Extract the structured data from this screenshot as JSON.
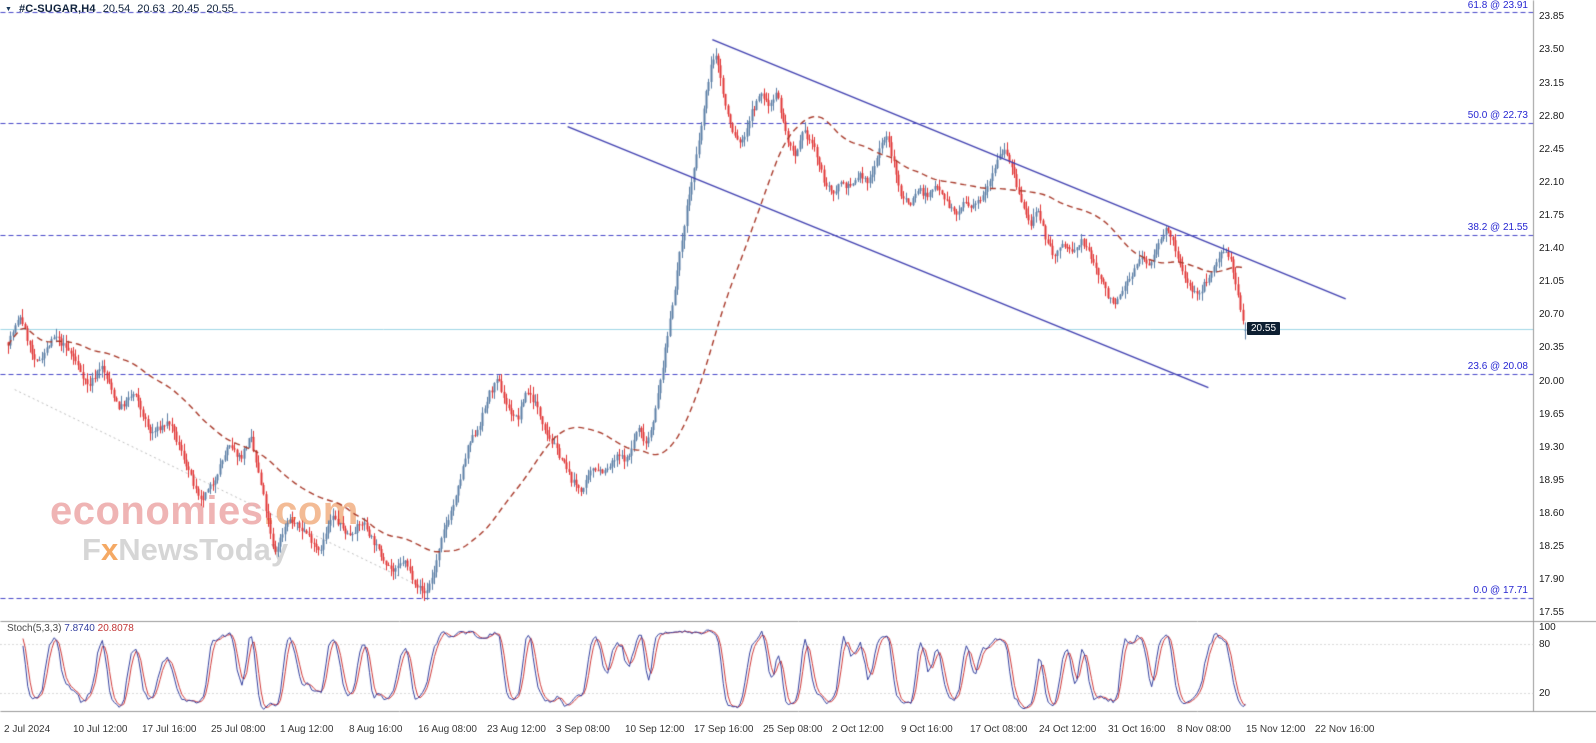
{
  "header": {
    "symbol": "#C-SUGAR,H4",
    "open": "20.54",
    "high": "20.63",
    "low": "20.45",
    "close": "20.55"
  },
  "watermark": {
    "brand": "economies",
    "brand_suffix": ".com",
    "sub_prefix": "F",
    "sub_x": "x",
    "sub_suffix": "NewsToday"
  },
  "colors": {
    "up": "#5c7fa6",
    "down": "#e03636",
    "ma": "#a93c2d",
    "channel": "#4040b0",
    "fib_line": "#4646c8",
    "price_line": "#9ed6e6",
    "price_tag_bg": "#0d1f31",
    "stoch_main": "#333f9e",
    "stoch_signal": "#d03a3a",
    "stoch_level": "#b0b0b0",
    "border": "#999999",
    "gray_trendline": "#bdbdbd"
  },
  "price_axis": {
    "ticks": [
      "23.85",
      "23.50",
      "23.15",
      "22.80",
      "22.45",
      "22.10",
      "21.75",
      "21.40",
      "21.05",
      "20.70",
      "20.35",
      "20.00",
      "19.65",
      "19.30",
      "18.95",
      "18.60",
      "18.25",
      "17.90",
      "17.55"
    ]
  },
  "fib_levels": [
    {
      "label": "61.8 @ 23.91",
      "price": 23.91
    },
    {
      "label": "50.0 @ 22.73",
      "price": 22.73
    },
    {
      "label": "38.2 @ 21.55",
      "price": 21.55
    },
    {
      "label": "23.6 @ 20.08",
      "price": 20.08
    },
    {
      "label": "0.0 @ 17.71",
      "price": 17.71
    }
  ],
  "price_tag": {
    "label": "20.55",
    "price": 20.55
  },
  "stoch_panel": {
    "label": "Stoch(5,3,3)",
    "value_k": "7.8740",
    "value_d": "20.8078",
    "levels": [
      {
        "label": "100",
        "value": 100
      },
      {
        "label": "80",
        "value": 80
      },
      {
        "label": "20",
        "value": 20
      }
    ]
  },
  "time_axis": {
    "labels": [
      "2 Jul 2024",
      "10 Jul 12:00",
      "17 Jul 16:00",
      "25 Jul 08:00",
      "1 Aug 12:00",
      "8 Aug 16:00",
      "16 Aug 08:00",
      "23 Aug 12:00",
      "3 Sep 08:00",
      "10 Sep 12:00",
      "17 Sep 16:00",
      "25 Sep 08:00",
      "2 Oct 12:00",
      "9 Oct 16:00",
      "17 Oct 08:00",
      "24 Oct 12:00",
      "31 Oct 16:00",
      "8 Nov 08:00",
      "15 Nov 12:00",
      "22 Nov 16:00"
    ]
  },
  "chart_data": {
    "type": "candlestick",
    "title": "#C-SUGAR H4 with Stochastic(5,3,3)",
    "symbol": "#C-SUGAR",
    "timeframe": "H4",
    "ylim": [
      17.5,
      23.97
    ],
    "x_labels": [
      "2 Jul 2024",
      "10 Jul 12:00",
      "17 Jul 16:00",
      "25 Jul 08:00",
      "1 Aug 12:00",
      "8 Aug 16:00",
      "16 Aug 08:00",
      "23 Aug 12:00",
      "3 Sep 08:00",
      "10 Sep 12:00",
      "17 Sep 16:00",
      "25 Sep 08:00",
      "2 Oct 12:00",
      "9 Oct 16:00",
      "17 Oct 08:00",
      "24 Oct 12:00",
      "31 Oct 16:00",
      "8 Nov 08:00",
      "15 Nov 12:00",
      "22 Nov 16:00"
    ],
    "last_ohlc": {
      "open": 20.54,
      "high": 20.63,
      "low": 20.45,
      "close": 20.55
    },
    "fib_retracement": {
      "0.0": 17.71,
      "23.6": 20.08,
      "38.2": 21.55,
      "50.0": 22.73,
      "61.8": 23.91
    },
    "moving_average": {
      "style": "dashed",
      "approx_period": 50
    },
    "stochastic": {
      "k_period": 5,
      "slowing": 3,
      "d_period": 3,
      "last_main": 7.874,
      "last_signal": 20.8078,
      "levels": [
        20,
        80
      ]
    },
    "channel_lines": [
      {
        "t1": 0.569,
        "p1": 23.62,
        "t2": 1.081,
        "p2": 20.88
      },
      {
        "t1": 0.452,
        "p1": 22.7,
        "t2": 0.97,
        "p2": 19.94
      }
    ],
    "gray_trendline": {
      "t1": 0.005,
      "p1": 19.92,
      "t2": 0.342,
      "p2": 17.78
    },
    "price_path": [
      [
        0.0,
        20.42
      ],
      [
        0.01,
        20.7
      ],
      [
        0.022,
        20.18
      ],
      [
        0.038,
        20.48
      ],
      [
        0.052,
        20.28
      ],
      [
        0.065,
        19.95
      ],
      [
        0.075,
        20.18
      ],
      [
        0.09,
        19.72
      ],
      [
        0.102,
        19.88
      ],
      [
        0.115,
        19.45
      ],
      [
        0.13,
        19.58
      ],
      [
        0.145,
        19.1
      ],
      [
        0.155,
        18.72
      ],
      [
        0.165,
        18.92
      ],
      [
        0.178,
        19.32
      ],
      [
        0.188,
        19.2
      ],
      [
        0.196,
        19.42
      ],
      [
        0.206,
        18.8
      ],
      [
        0.215,
        18.18
      ],
      [
        0.226,
        18.55
      ],
      [
        0.24,
        18.42
      ],
      [
        0.252,
        18.22
      ],
      [
        0.262,
        18.58
      ],
      [
        0.275,
        18.38
      ],
      [
        0.287,
        18.52
      ],
      [
        0.3,
        18.2
      ],
      [
        0.312,
        17.98
      ],
      [
        0.32,
        18.12
      ],
      [
        0.33,
        17.86
      ],
      [
        0.337,
        17.76
      ],
      [
        0.344,
        17.98
      ],
      [
        0.352,
        18.42
      ],
      [
        0.362,
        18.78
      ],
      [
        0.372,
        19.32
      ],
      [
        0.381,
        19.55
      ],
      [
        0.389,
        19.88
      ],
      [
        0.396,
        20.02
      ],
      [
        0.404,
        19.72
      ],
      [
        0.412,
        19.6
      ],
      [
        0.419,
        19.92
      ],
      [
        0.426,
        19.78
      ],
      [
        0.436,
        19.45
      ],
      [
        0.446,
        19.22
      ],
      [
        0.456,
        18.95
      ],
      [
        0.464,
        18.85
      ],
      [
        0.473,
        19.1
      ],
      [
        0.483,
        19.05
      ],
      [
        0.493,
        19.22
      ],
      [
        0.501,
        19.18
      ],
      [
        0.509,
        19.52
      ],
      [
        0.516,
        19.35
      ],
      [
        0.523,
        19.68
      ],
      [
        0.531,
        20.32
      ],
      [
        0.54,
        21.1
      ],
      [
        0.549,
        21.88
      ],
      [
        0.557,
        22.42
      ],
      [
        0.563,
        22.95
      ],
      [
        0.568,
        23.35
      ],
      [
        0.573,
        23.45
      ],
      [
        0.579,
        22.95
      ],
      [
        0.586,
        22.62
      ],
      [
        0.593,
        22.52
      ],
      [
        0.601,
        22.85
      ],
      [
        0.609,
        23.05
      ],
      [
        0.615,
        22.92
      ],
      [
        0.621,
        23.08
      ],
      [
        0.629,
        22.6
      ],
      [
        0.636,
        22.35
      ],
      [
        0.643,
        22.65
      ],
      [
        0.651,
        22.5
      ],
      [
        0.659,
        22.15
      ],
      [
        0.666,
        21.98
      ],
      [
        0.673,
        22.12
      ],
      [
        0.681,
        22.05
      ],
      [
        0.688,
        22.2
      ],
      [
        0.695,
        22.1
      ],
      [
        0.701,
        22.32
      ],
      [
        0.706,
        22.55
      ],
      [
        0.711,
        22.58
      ],
      [
        0.716,
        22.3
      ],
      [
        0.721,
        22.0
      ],
      [
        0.729,
        21.88
      ],
      [
        0.736,
        22.05
      ],
      [
        0.743,
        21.95
      ],
      [
        0.751,
        22.1
      ],
      [
        0.759,
        21.9
      ],
      [
        0.766,
        21.76
      ],
      [
        0.773,
        21.9
      ],
      [
        0.779,
        21.82
      ],
      [
        0.786,
        21.95
      ],
      [
        0.793,
        22.12
      ],
      [
        0.8,
        22.38
      ],
      [
        0.806,
        22.48
      ],
      [
        0.813,
        22.18
      ],
      [
        0.819,
        21.9
      ],
      [
        0.826,
        21.66
      ],
      [
        0.832,
        21.8
      ],
      [
        0.839,
        21.52
      ],
      [
        0.846,
        21.32
      ],
      [
        0.853,
        21.46
      ],
      [
        0.861,
        21.36
      ],
      [
        0.868,
        21.5
      ],
      [
        0.876,
        21.3
      ],
      [
        0.883,
        21.1
      ],
      [
        0.889,
        20.92
      ],
      [
        0.896,
        20.82
      ],
      [
        0.903,
        21.02
      ],
      [
        0.909,
        21.16
      ],
      [
        0.916,
        21.32
      ],
      [
        0.923,
        21.22
      ],
      [
        0.929,
        21.46
      ],
      [
        0.935,
        21.62
      ],
      [
        0.941,
        21.5
      ],
      [
        0.948,
        21.2
      ],
      [
        0.955,
        21.02
      ],
      [
        0.962,
        20.9
      ],
      [
        0.968,
        21.06
      ],
      [
        0.975,
        21.22
      ],
      [
        0.982,
        21.42
      ],
      [
        0.988,
        21.3
      ],
      [
        0.993,
        20.95
      ],
      [
        1.0,
        20.55
      ]
    ]
  }
}
